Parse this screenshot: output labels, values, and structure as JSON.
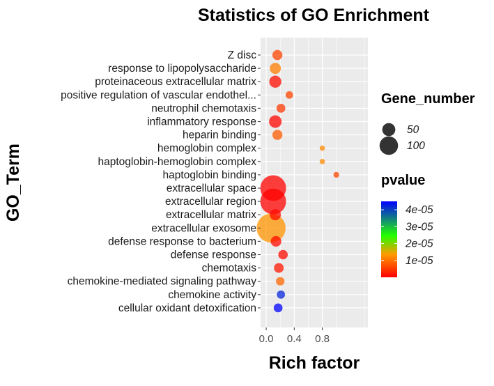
{
  "chart_data": {
    "type": "scatter",
    "title": "Statistics of GO Enrichment",
    "xlabel": "Rich factor",
    "ylabel": "GO_Term",
    "xlim": [
      -0.08,
      1.45
    ],
    "xticks": [
      "0.0",
      "0.4",
      "0.8"
    ],
    "xtick_values": [
      0.0,
      0.4,
      0.8
    ],
    "terms": [
      "Z disc",
      "response to lipopolysaccharide",
      "proteinaceous extracellular matrix",
      "positive regulation of vascular endothel...",
      "neutrophil chemotaxis",
      "inflammatory response",
      "heparin binding",
      "hemoglobin complex",
      "haptoglobin-hemoglobin complex",
      "haptoglobin binding",
      "extracellular space",
      "extracellular region",
      "extracellular matrix",
      "extracellular exosome",
      "defense response to bacterium",
      "defense response",
      "chemotaxis",
      "chemokine-mediated signaling pathway",
      "chemokine activity",
      "cellular oxidant detoxification"
    ],
    "points": [
      {
        "term": "Z disc",
        "rich_factor": 0.16,
        "gene_number": 18,
        "pvalue": 6e-06
      },
      {
        "term": "response to lipopolysaccharide",
        "rich_factor": 0.13,
        "gene_number": 22,
        "pvalue": 1.1e-05
      },
      {
        "term": "proteinaceous extracellular matrix",
        "rich_factor": 0.13,
        "gene_number": 26,
        "pvalue": 1e-06
      },
      {
        "term": "positive regulation of vascular endothel...",
        "rich_factor": 0.33,
        "gene_number": 10,
        "pvalue": 6e-06
      },
      {
        "term": "neutrophil chemotaxis",
        "rich_factor": 0.21,
        "gene_number": 14,
        "pvalue": 5e-06
      },
      {
        "term": "inflammatory response",
        "rich_factor": 0.13,
        "gene_number": 28,
        "pvalue": 5e-07
      },
      {
        "term": "heparin binding",
        "rich_factor": 0.16,
        "gene_number": 18,
        "pvalue": 8e-06
      },
      {
        "term": "hemoglobin complex",
        "rich_factor": 0.8,
        "gene_number": 5,
        "pvalue": 1.2e-05
      },
      {
        "term": "haptoglobin-hemoglobin complex",
        "rich_factor": 0.8,
        "gene_number": 5,
        "pvalue": 1.2e-05
      },
      {
        "term": "haptoglobin binding",
        "rich_factor": 1.0,
        "gene_number": 6,
        "pvalue": 6e-06
      },
      {
        "term": "extracellular space",
        "rich_factor": 0.1,
        "gene_number": 118,
        "pvalue": 1e-07
      },
      {
        "term": "extracellular region",
        "rich_factor": 0.1,
        "gene_number": 118,
        "pvalue": 1e-07
      },
      {
        "term": "extracellular matrix",
        "rich_factor": 0.13,
        "gene_number": 22,
        "pvalue": 1e-06
      },
      {
        "term": "extracellular exosome",
        "rich_factor": 0.07,
        "gene_number": 150,
        "pvalue": 1.3e-05
      },
      {
        "term": "defense response to bacterium",
        "rich_factor": 0.14,
        "gene_number": 20,
        "pvalue": 1e-06
      },
      {
        "term": "defense response",
        "rich_factor": 0.24,
        "gene_number": 16,
        "pvalue": 1e-06
      },
      {
        "term": "chemotaxis",
        "rich_factor": 0.18,
        "gene_number": 17,
        "pvalue": 2e-06
      },
      {
        "term": "chemokine-mediated signaling pathway",
        "rich_factor": 0.2,
        "gene_number": 13,
        "pvalue": 9e-06
      },
      {
        "term": "chemokine activity",
        "rich_factor": 0.21,
        "gene_number": 12,
        "pvalue": 4.2e-05
      },
      {
        "term": "cellular oxidant detoxification",
        "rich_factor": 0.17,
        "gene_number": 14,
        "pvalue": 4.5e-05
      }
    ],
    "size_legend": {
      "title": "Gene_number",
      "entries": [
        {
          "label": "50",
          "value": 50
        },
        {
          "label": "100",
          "value": 100
        }
      ]
    },
    "color_legend": {
      "title": "pvalue",
      "range": [
        0,
        4.5e-05
      ],
      "labels": [
        "4e-05",
        "3e-05",
        "2e-05",
        "1e-05"
      ],
      "label_values": [
        4e-05,
        3e-05,
        2e-05,
        1e-05
      ],
      "gradient": [
        "#ff0000",
        "#ff8c00",
        "#00ff00",
        "#0000ff"
      ]
    },
    "panel_background": "#ebebeb",
    "grid_color": "#ffffff",
    "point_alpha": 0.75
  }
}
